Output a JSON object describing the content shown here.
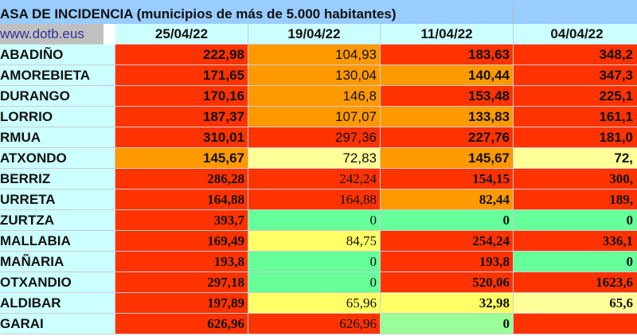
{
  "title": "ASA DE INCIDENCIA  (municipios de más de 5.000 habitantes)",
  "site": "www.dotb.eus",
  "dates": [
    "25/04/22",
    "19/04/22",
    "11/04/22",
    "04/04/22"
  ],
  "colors": {
    "red": "#ff3300",
    "orange": "#ff9900",
    "light_yellow": "#ffff99",
    "yellow": "#ffff66",
    "green": "#66ff99",
    "light_green": "#99ff99",
    "name_bg": "#ccffff",
    "header_bg": "#99ccff"
  },
  "rows": [
    {
      "name": "ABADIÑO",
      "v": [
        "222,98",
        "104,93",
        "183,63",
        "348,2"
      ],
      "c": [
        "red",
        "org",
        "red",
        "red"
      ]
    },
    {
      "name": "AMOREBIETA",
      "v": [
        "171,65",
        "130,04",
        "140,44",
        "347,3"
      ],
      "c": [
        "red",
        "org",
        "org",
        "red"
      ]
    },
    {
      "name": "DURANGO",
      "v": [
        "170,16",
        "146,8",
        "153,48",
        "225,1"
      ],
      "c": [
        "red",
        "org",
        "red",
        "red"
      ]
    },
    {
      "name": "LORRIO",
      "v": [
        "187,37",
        "107,07",
        "133,83",
        "161,1"
      ],
      "c": [
        "red",
        "org",
        "org",
        "red"
      ]
    },
    {
      "name": "RMUA",
      "v": [
        "310,01",
        "297,36",
        "227,76",
        "181,0"
      ],
      "c": [
        "red",
        "red",
        "red",
        "red"
      ]
    },
    {
      "name": "ATXONDO",
      "v": [
        "145,67",
        "72,83",
        "145,67",
        "72,"
      ],
      "c": [
        "org",
        "ly",
        "org",
        "ly"
      ]
    },
    {
      "name": "BERRIZ",
      "v": [
        "286,28",
        "242,24",
        "154,15",
        "300,"
      ],
      "c": [
        "red",
        "red",
        "red",
        "red"
      ]
    },
    {
      "name": "URRETA",
      "v": [
        "164,88",
        "164,88",
        "82,44",
        "189,"
      ],
      "c": [
        "red",
        "red",
        "org",
        "red"
      ]
    },
    {
      "name": "ZURTZA",
      "v": [
        "393,7",
        "0",
        "0",
        "0"
      ],
      "c": [
        "red",
        "gr",
        "gr",
        "gr"
      ]
    },
    {
      "name": "MALLABIA",
      "v": [
        "169,49",
        "84,75",
        "254,24",
        "336,1"
      ],
      "c": [
        "red",
        "yl",
        "red",
        "red"
      ]
    },
    {
      "name": "MAÑARIA",
      "v": [
        "193,8",
        "0",
        "193,8",
        "0"
      ],
      "c": [
        "red",
        "gr",
        "red",
        "gr"
      ]
    },
    {
      "name": "OTXANDIO",
      "v": [
        "297,18",
        "0",
        "520,06",
        "1623,6"
      ],
      "c": [
        "red",
        "gr",
        "red",
        "red"
      ]
    },
    {
      "name": "ALDIBAR",
      "v": [
        "197,89",
        "65,96",
        "32,98",
        "65,6"
      ],
      "c": [
        "red",
        "yl",
        "yl",
        "ly"
      ]
    },
    {
      "name": "GARAI",
      "v": [
        "626,96",
        "626,96",
        "0",
        ""
      ],
      "c": [
        "red",
        "red",
        "lg",
        "red"
      ]
    }
  ]
}
